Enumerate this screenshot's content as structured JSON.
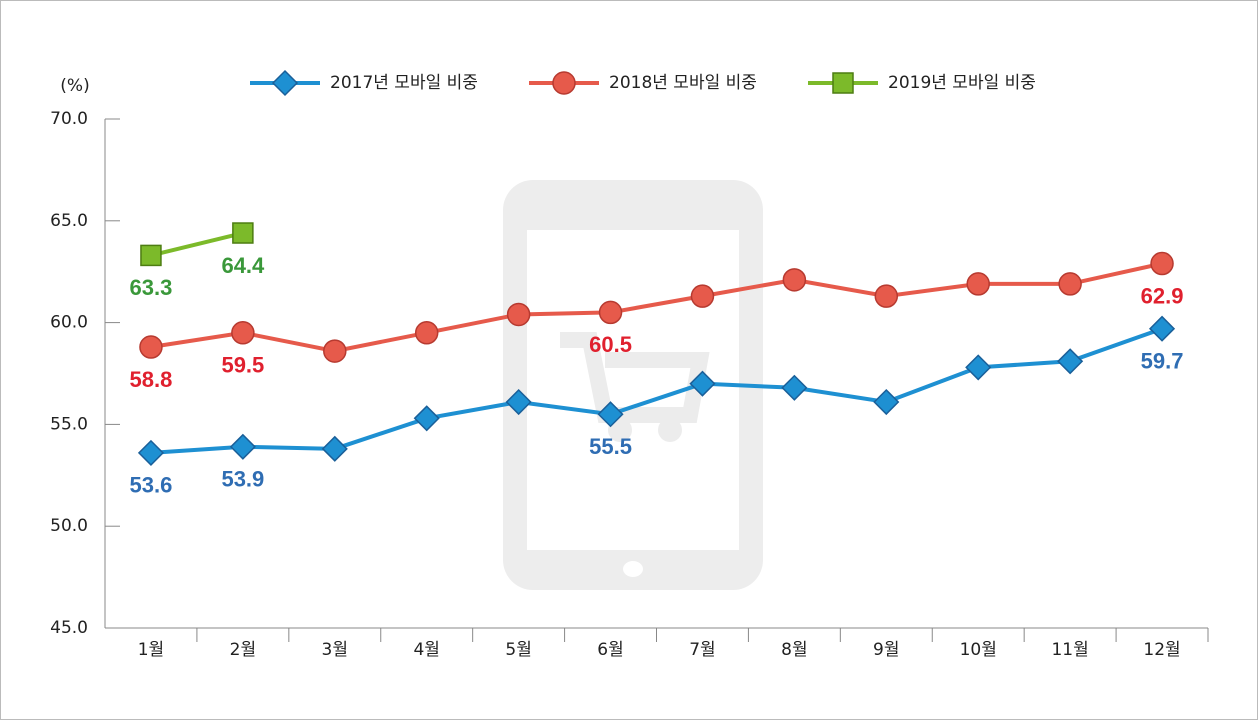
{
  "chart_data": {
    "type": "line",
    "ylabel": "(%)",
    "categories": [
      "1월",
      "2월",
      "3월",
      "4월",
      "5월",
      "6월",
      "7월",
      "8월",
      "9월",
      "10월",
      "11월",
      "12월"
    ],
    "series": [
      {
        "name": "2017년 모바일 비중",
        "color": "#1e90d2",
        "label_color": "#2f6db3",
        "marker": "diamond",
        "values": [
          53.6,
          53.9,
          53.8,
          55.3,
          56.1,
          55.5,
          57.0,
          56.8,
          56.1,
          57.8,
          58.1,
          59.7
        ],
        "value_labels": [
          "53.6",
          "53.9",
          null,
          null,
          null,
          "55.5",
          null,
          null,
          null,
          null,
          null,
          "59.7"
        ]
      },
      {
        "name": "2018년 모바일 비중",
        "color": "#e65a4b",
        "label_color": "#e0202e",
        "marker": "circle",
        "values": [
          58.8,
          59.5,
          58.6,
          59.5,
          60.4,
          60.5,
          61.3,
          62.1,
          61.3,
          61.9,
          61.9,
          62.9
        ],
        "value_labels": [
          "58.8",
          "59.5",
          null,
          null,
          null,
          "60.5",
          null,
          null,
          null,
          null,
          null,
          "62.9"
        ]
      },
      {
        "name": "2019년 모바일 비중",
        "color": "#7cba2a",
        "label_color": "#3a983a",
        "marker": "square",
        "values": [
          63.3,
          64.4,
          null,
          null,
          null,
          null,
          null,
          null,
          null,
          null,
          null,
          null
        ],
        "value_labels": [
          "63.3",
          "64.4",
          null,
          null,
          null,
          null,
          null,
          null,
          null,
          null,
          null,
          null
        ]
      }
    ],
    "ylim": [
      45,
      70
    ],
    "yticks": [
      {
        "value": 45,
        "label": "45.0"
      },
      {
        "value": 50,
        "label": "50.0"
      },
      {
        "value": 55,
        "label": "55.0"
      },
      {
        "value": 60,
        "label": "60.0"
      },
      {
        "value": 65,
        "label": "65.0"
      },
      {
        "value": 70,
        "label": "70.0"
      }
    ],
    "legend": "top"
  }
}
